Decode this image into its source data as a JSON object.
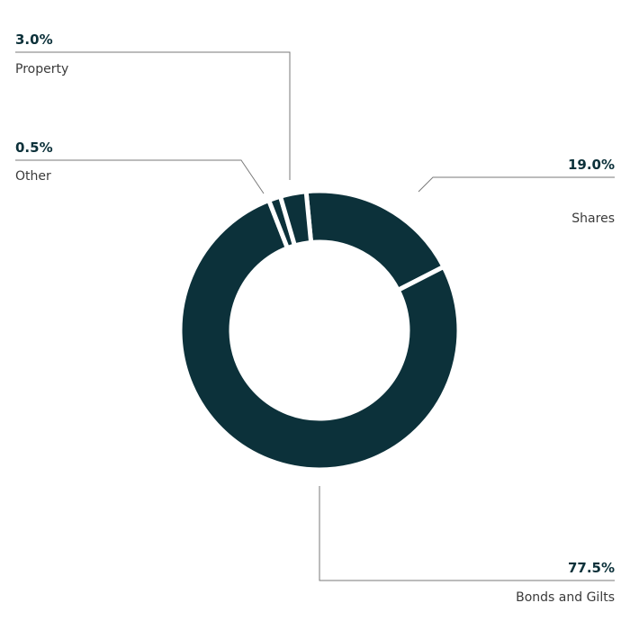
{
  "chart_data": {
    "type": "pie",
    "donut": true,
    "title": "",
    "color": "#0c313a",
    "leader_line_color": "#7a7a7a",
    "slices": [
      {
        "label": "Shares",
        "value": 19.0,
        "value_label": "19.0%"
      },
      {
        "label": "Bonds and Gilts",
        "value": 77.5,
        "value_label": "77.5%"
      },
      {
        "label": "Other",
        "value": 0.5,
        "value_label": "0.5%"
      },
      {
        "label": "Property",
        "value": 3.0,
        "value_label": "3.0%"
      }
    ]
  }
}
